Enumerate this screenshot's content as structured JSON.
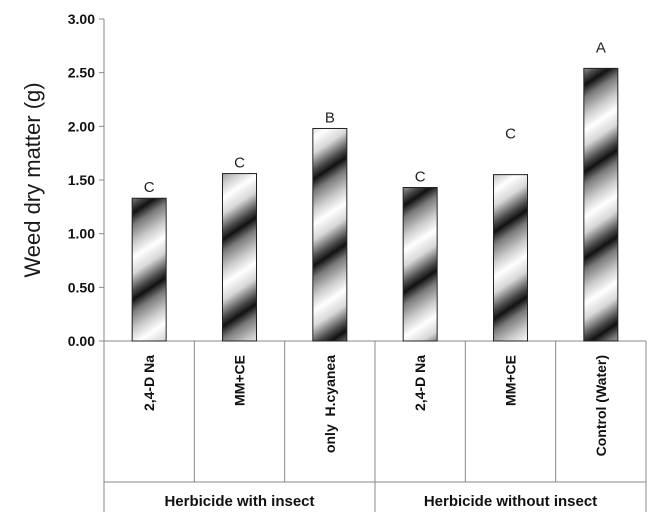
{
  "chart_data": {
    "type": "bar",
    "ylabel": "Weed dry matter (g)",
    "ylim": [
      0,
      3.0
    ],
    "yticks": [
      "0.00",
      "0.50",
      "1.00",
      "1.50",
      "2.00",
      "2.50",
      "3.00"
    ],
    "categories": [
      "2,4-D Na",
      "MM+CE",
      "only  H.cyanea",
      "2,4-D Na",
      "MM+CE",
      "Control (Water)"
    ],
    "values": [
      1.33,
      1.56,
      1.98,
      1.43,
      1.55,
      2.54
    ],
    "significance_letters": [
      "C",
      "C",
      "B",
      "C",
      "C",
      "A"
    ],
    "groups": [
      {
        "label": "Herbicide with insect",
        "span": [
          0,
          2
        ]
      },
      {
        "label": "Herbicide without insect",
        "span": [
          3,
          5
        ]
      }
    ],
    "grid": false,
    "legend": "none"
  }
}
